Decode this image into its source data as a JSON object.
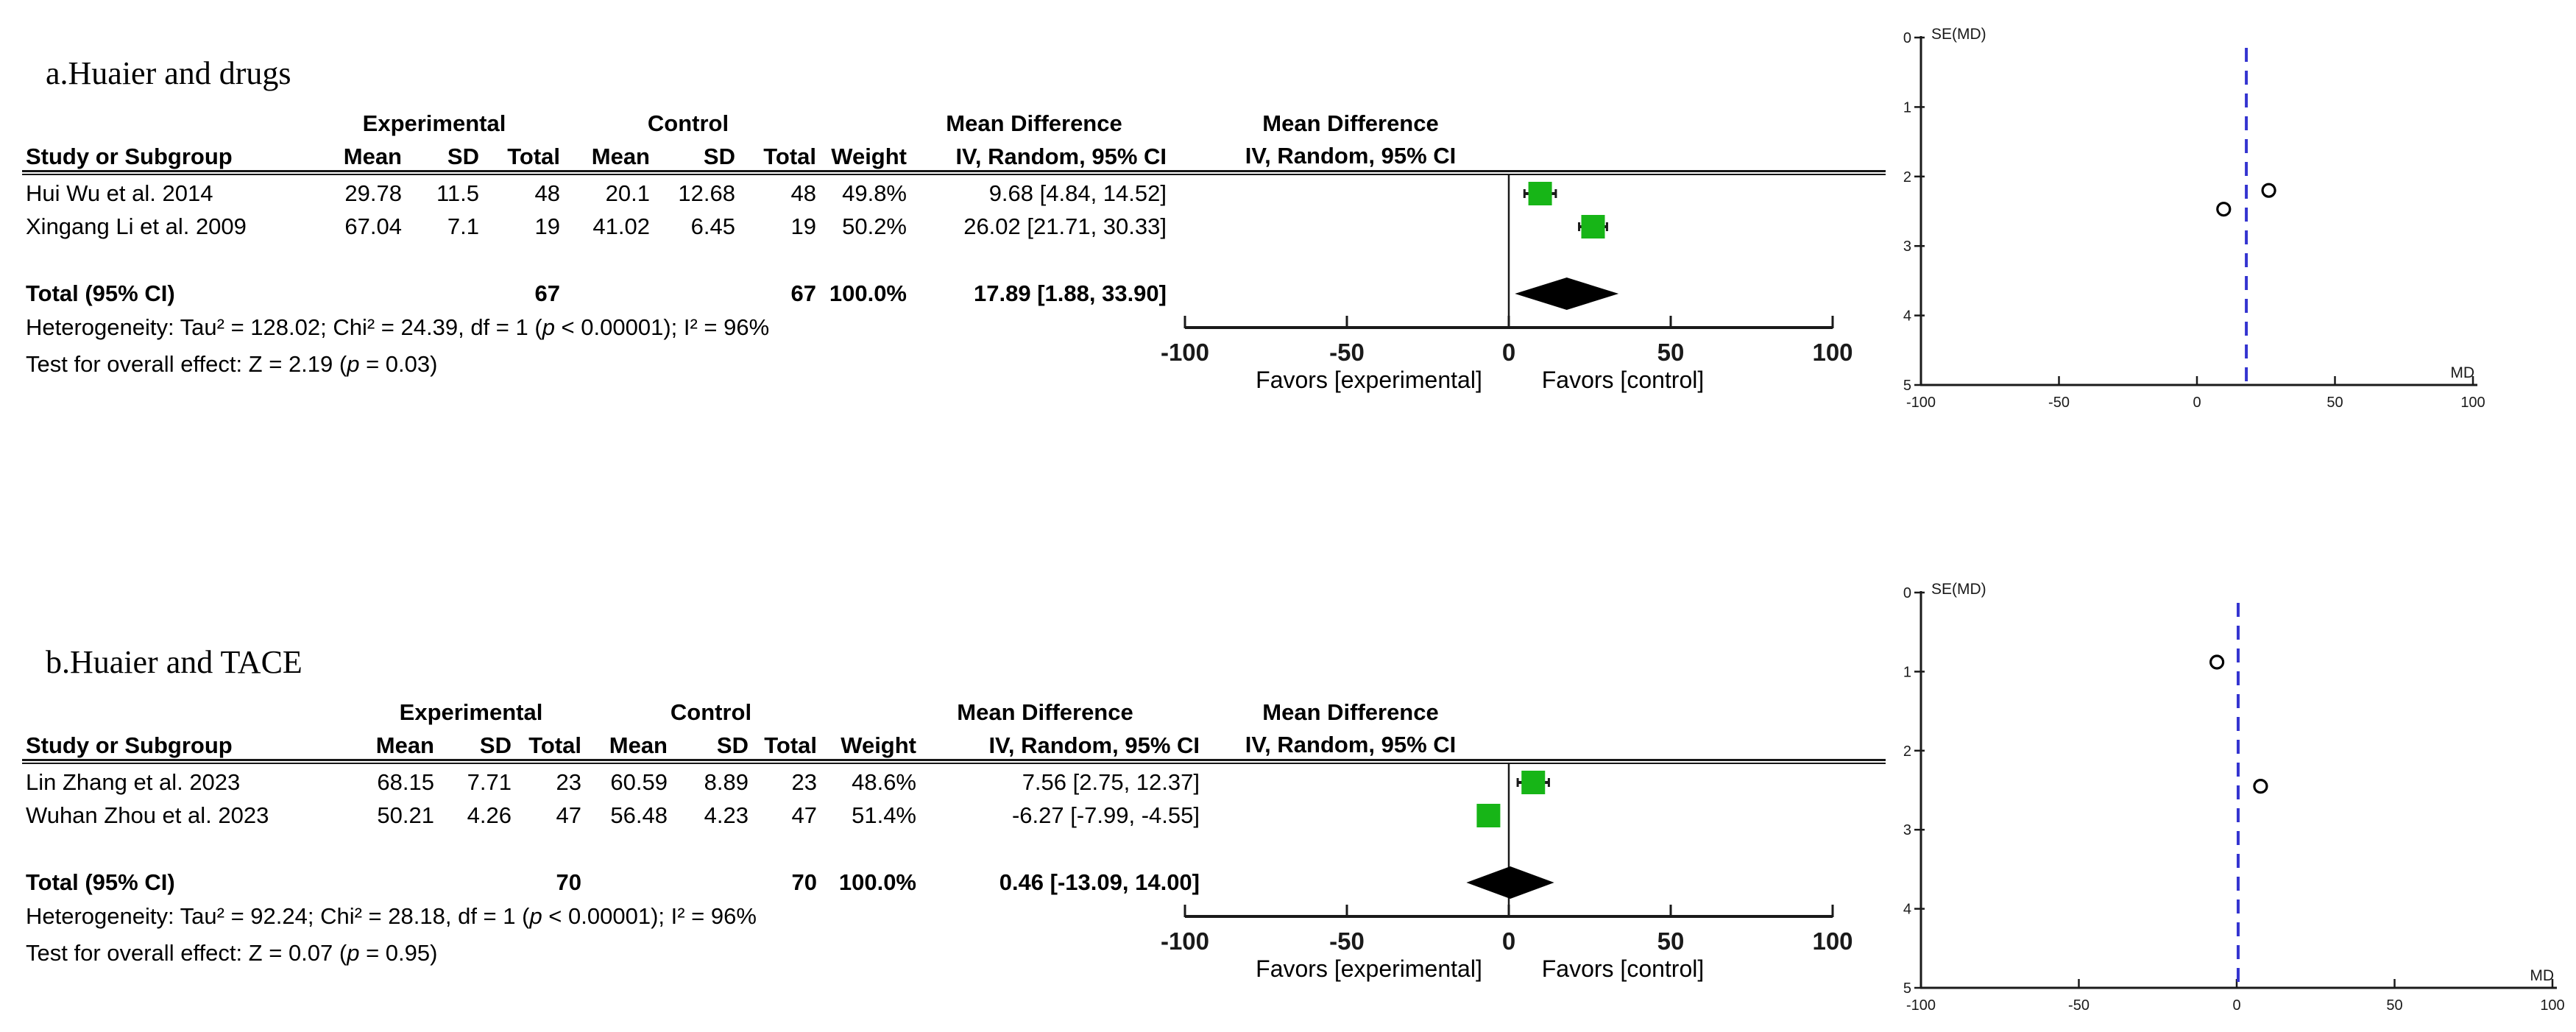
{
  "colors": {
    "marker_green": "#17b517",
    "diamond_black": "#000000",
    "funnel_pooled_line_blue": "#3434d0",
    "axis_black": "#1a1a1a"
  },
  "labels": {
    "study_or_subgroup": "Study or Subgroup",
    "mean": "Mean",
    "sd": "SD",
    "total": "Total",
    "weight": "Weight",
    "iv_random_ci": "IV, Random, 95% CI",
    "experimental": "Experimental",
    "control": "Control",
    "mean_difference": "Mean Difference",
    "total_95_ci": "Total (95% CI)",
    "favors_experimental": "Favors [experimental]",
    "favors_control": "Favors [control]",
    "se_md": "SE(MD)",
    "md": "MD"
  },
  "panels": [
    {
      "id": "a",
      "title": "a.Huaier and drugs",
      "table": {
        "rows": [
          {
            "study": "Hui Wu et al. 2014",
            "exp_mean": "29.78",
            "exp_sd": "11.5",
            "exp_total": "48",
            "ctrl_mean": "20.1",
            "ctrl_sd": "12.68",
            "ctrl_total": "48",
            "weight": "49.8%",
            "ci_text": "9.68 [4.84, 14.52]",
            "md": 9.68,
            "ci_low": 4.84,
            "ci_high": 14.52
          },
          {
            "study": "Xingang Li et al. 2009",
            "exp_mean": "67.04",
            "exp_sd": "7.1",
            "exp_total": "19",
            "ctrl_mean": "41.02",
            "ctrl_sd": "6.45",
            "ctrl_total": "19",
            "weight": "50.2%",
            "ci_text": "26.02 [21.71, 30.33]",
            "md": 26.02,
            "ci_low": 21.71,
            "ci_high": 30.33
          }
        ],
        "total": {
          "exp_total": "67",
          "ctrl_total": "67",
          "weight": "100.0%",
          "ci_text": "17.89 [1.88, 33.90]",
          "md": 17.89,
          "ci_low": 1.88,
          "ci_high": 33.9
        },
        "heterogeneity": "Heterogeneity: Tau² = 128.02; Chi² = 24.39, df = 1 (p < 0.00001); I² = 96%",
        "overall_effect": "Test for overall effect: Z = 2.19 (p = 0.03)"
      },
      "forest": {
        "ticks": [
          -100,
          -50,
          0,
          50,
          100
        ]
      },
      "funnel": {
        "x_ticks": [
          -100,
          -50,
          0,
          50,
          100
        ],
        "y_ticks": [
          0,
          1,
          2,
          3,
          4,
          5
        ],
        "pooled_md": 17.89,
        "points": [
          {
            "md": 9.68,
            "se": 2.47
          },
          {
            "md": 26.02,
            "se": 2.2
          }
        ]
      }
    },
    {
      "id": "b",
      "title": "b.Huaier and TACE",
      "table": {
        "rows": [
          {
            "study": "Lin Zhang et al. 2023",
            "exp_mean": "68.15",
            "exp_sd": "7.71",
            "exp_total": "23",
            "ctrl_mean": "60.59",
            "ctrl_sd": "8.89",
            "ctrl_total": "23",
            "weight": "48.6%",
            "ci_text": "7.56 [2.75, 12.37]",
            "md": 7.56,
            "ci_low": 2.75,
            "ci_high": 12.37
          },
          {
            "study": "Wuhan Zhou et al. 2023",
            "exp_mean": "50.21",
            "exp_sd": "4.26",
            "exp_total": "47",
            "ctrl_mean": "56.48",
            "ctrl_sd": "4.23",
            "ctrl_total": "47",
            "weight": "51.4%",
            "ci_text": "-6.27 [-7.99, -4.55]",
            "md": -6.27,
            "ci_low": -7.99,
            "ci_high": -4.55
          }
        ],
        "total": {
          "exp_total": "70",
          "ctrl_total": "70",
          "weight": "100.0%",
          "ci_text": "0.46 [-13.09, 14.00]",
          "md": 0.46,
          "ci_low": -13.09,
          "ci_high": 14.0
        },
        "heterogeneity": "Heterogeneity: Tau² = 92.24; Chi² = 28.18, df = 1 (p < 0.00001); I² = 96%",
        "overall_effect": "Test for overall effect: Z = 0.07 (p = 0.95)"
      },
      "forest": {
        "ticks": [
          -100,
          -50,
          0,
          50,
          100
        ]
      },
      "funnel": {
        "x_ticks": [
          -100,
          -50,
          0,
          50,
          100
        ],
        "y_ticks": [
          0,
          1,
          2,
          3,
          4,
          5
        ],
        "pooled_md": 0.46,
        "points": [
          {
            "md": -6.27,
            "se": 0.88
          },
          {
            "md": 7.56,
            "se": 2.45
          }
        ]
      }
    }
  ],
  "chart_data": [
    {
      "type": "forest",
      "panel": "a",
      "title": "a.Huaier and drugs",
      "effect_measure": "Mean Difference, IV, Random, 95% CI",
      "xlim": [
        -100,
        100
      ],
      "x_ticks": [
        -100,
        -50,
        0,
        50,
        100
      ],
      "favors": [
        "Favors [experimental]",
        "Favors [control]"
      ],
      "studies": [
        {
          "name": "Hui Wu et al. 2014",
          "exp_mean": 29.78,
          "exp_sd": 11.5,
          "exp_total": 48,
          "ctrl_mean": 20.1,
          "ctrl_sd": 12.68,
          "ctrl_total": 48,
          "weight_pct": 49.8,
          "md": 9.68,
          "ci": [
            4.84,
            14.52
          ]
        },
        {
          "name": "Xingang Li et al. 2009",
          "exp_mean": 67.04,
          "exp_sd": 7.1,
          "exp_total": 19,
          "ctrl_mean": 41.02,
          "ctrl_sd": 6.45,
          "ctrl_total": 19,
          "weight_pct": 50.2,
          "md": 26.02,
          "ci": [
            21.71,
            30.33
          ]
        }
      ],
      "total": {
        "exp_total": 67,
        "ctrl_total": 67,
        "weight_pct": 100.0,
        "md": 17.89,
        "ci": [
          1.88,
          33.9
        ]
      },
      "heterogeneity": {
        "tau2": 128.02,
        "chi2": 24.39,
        "df": 1,
        "p": "< 0.00001",
        "i2_pct": 96
      },
      "overall_effect": {
        "z": 2.19,
        "p": 0.03
      }
    },
    {
      "type": "scatter",
      "panel": "a",
      "subtype": "funnel-plot",
      "xlabel": "MD",
      "ylabel": "SE(MD)",
      "xlim": [
        -100,
        100
      ],
      "ylim": [
        0,
        5
      ],
      "y_axis_inverted": true,
      "pooled_line_x": 17.89,
      "points": [
        [
          9.68,
          2.47
        ],
        [
          26.02,
          2.2
        ]
      ]
    },
    {
      "type": "forest",
      "panel": "b",
      "title": "b.Huaier and TACE",
      "effect_measure": "Mean Difference, IV, Random, 95% CI",
      "xlim": [
        -100,
        100
      ],
      "x_ticks": [
        -100,
        -50,
        0,
        50,
        100
      ],
      "favors": [
        "Favors [experimental]",
        "Favors [control]"
      ],
      "studies": [
        {
          "name": "Lin Zhang et al. 2023",
          "exp_mean": 68.15,
          "exp_sd": 7.71,
          "exp_total": 23,
          "ctrl_mean": 60.59,
          "ctrl_sd": 8.89,
          "ctrl_total": 23,
          "weight_pct": 48.6,
          "md": 7.56,
          "ci": [
            2.75,
            12.37
          ]
        },
        {
          "name": "Wuhan Zhou et al. 2023",
          "exp_mean": 50.21,
          "exp_sd": 4.26,
          "exp_total": 47,
          "ctrl_mean": 56.48,
          "ctrl_sd": 4.23,
          "ctrl_total": 47,
          "weight_pct": 51.4,
          "md": -6.27,
          "ci": [
            -7.99,
            -4.55
          ]
        }
      ],
      "total": {
        "exp_total": 70,
        "ctrl_total": 70,
        "weight_pct": 100.0,
        "md": 0.46,
        "ci": [
          -13.09,
          14.0
        ]
      },
      "heterogeneity": {
        "tau2": 92.24,
        "chi2": 28.18,
        "df": 1,
        "p": "< 0.00001",
        "i2_pct": 96
      },
      "overall_effect": {
        "z": 0.07,
        "p": 0.95
      }
    },
    {
      "type": "scatter",
      "panel": "b",
      "subtype": "funnel-plot",
      "xlabel": "MD",
      "ylabel": "SE(MD)",
      "xlim": [
        -100,
        100
      ],
      "ylim": [
        0,
        5
      ],
      "y_axis_inverted": true,
      "pooled_line_x": 0.46,
      "points": [
        [
          -6.27,
          0.88
        ],
        [
          7.56,
          2.45
        ]
      ]
    }
  ]
}
